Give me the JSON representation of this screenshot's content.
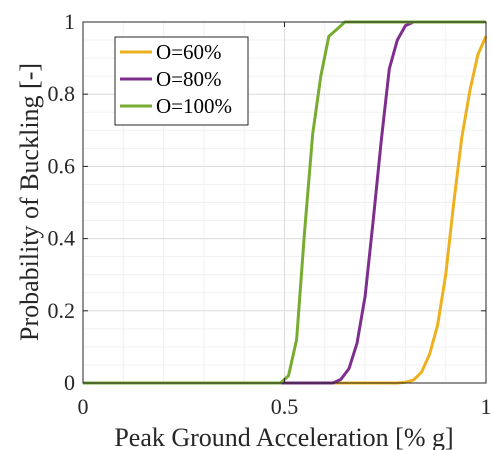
{
  "chart_data": {
    "type": "line",
    "title": "",
    "xlabel": "Peak Ground Acceleration [% g]",
    "ylabel": "Probability of Buckling [-]",
    "xlim": [
      0,
      1
    ],
    "ylim": [
      0,
      1
    ],
    "xticks": [
      0,
      0.5,
      1
    ],
    "xtick_labels": [
      "0",
      "0.5",
      "1"
    ],
    "yticks": [
      0,
      0.2,
      0.4,
      0.6,
      0.8,
      1
    ],
    "ytick_labels": [
      "0",
      "0.2",
      "0.4",
      "0.6",
      "0.8",
      "1"
    ],
    "grid": true,
    "legend_position": "top-left",
    "series": [
      {
        "name": "O=60%",
        "color": "#EDB120",
        "x": [
          0,
          0.78,
          0.8,
          0.82,
          0.84,
          0.86,
          0.88,
          0.9,
          0.92,
          0.94,
          0.96,
          0.98,
          1.0
        ],
        "y": [
          0,
          0,
          0.002,
          0.008,
          0.03,
          0.08,
          0.16,
          0.3,
          0.5,
          0.68,
          0.81,
          0.91,
          0.96
        ]
      },
      {
        "name": "O=80%",
        "color": "#7E2F8E",
        "x": [
          0,
          0.62,
          0.64,
          0.66,
          0.68,
          0.7,
          0.72,
          0.74,
          0.76,
          0.78,
          0.8,
          0.82,
          1.0
        ],
        "y": [
          0,
          0,
          0.01,
          0.04,
          0.11,
          0.24,
          0.45,
          0.67,
          0.87,
          0.95,
          0.99,
          1.0,
          1.0
        ]
      },
      {
        "name": "O=100%",
        "color": "#77AC30",
        "x": [
          0,
          0.49,
          0.51,
          0.53,
          0.55,
          0.57,
          0.59,
          0.61,
          0.63,
          0.65,
          1.0
        ],
        "y": [
          0,
          0,
          0.02,
          0.12,
          0.42,
          0.69,
          0.85,
          0.96,
          0.98,
          1.0,
          1.0
        ]
      }
    ]
  }
}
